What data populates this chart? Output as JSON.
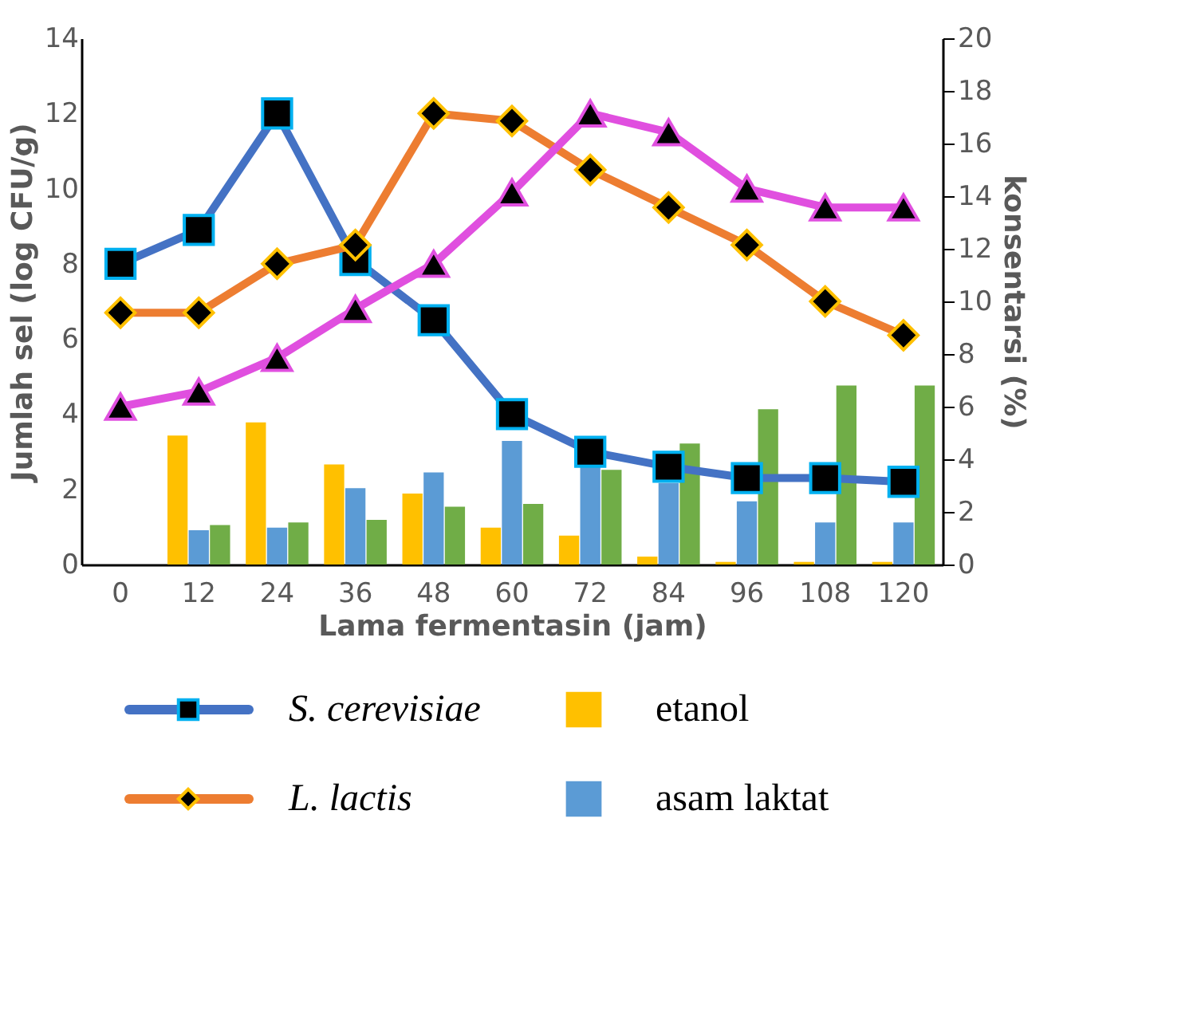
{
  "chart_data": {
    "type": "line",
    "xlabel": "Lama fermentasin (jam)",
    "ylabel": "Jumlah sel (log CFU/g)",
    "y2label": "konsentarsi (%)",
    "categories": [
      "0",
      "12",
      "24",
      "36",
      "48",
      "60",
      "72",
      "84",
      "96",
      "108",
      "120"
    ],
    "ylim": [
      0,
      14
    ],
    "yticks": [
      0,
      2,
      4,
      6,
      8,
      10,
      12,
      14
    ],
    "y2lim": [
      0,
      20
    ],
    "y2ticks": [
      0,
      2,
      4,
      6,
      8,
      10,
      12,
      14,
      16,
      18,
      20
    ],
    "grid": false,
    "legend": "bottom",
    "series": [
      {
        "type": "bar",
        "axis": "y2",
        "name": "etanol",
        "color": "#ffc000",
        "values": [
          null,
          4.9,
          5.4,
          3.8,
          2.7,
          1.4,
          1.1,
          0.3,
          0.1,
          0.1,
          0.1
        ]
      },
      {
        "type": "bar",
        "axis": "y2",
        "name": "asam laktat",
        "color": "#5b9bd5",
        "values": [
          null,
          1.3,
          1.4,
          2.9,
          3.5,
          4.7,
          3.7,
          3.1,
          2.4,
          1.6,
          1.6
        ]
      },
      {
        "type": "bar",
        "axis": "y2",
        "color": "#70ad47",
        "values": [
          null,
          1.5,
          1.6,
          1.7,
          2.2,
          2.3,
          3.6,
          4.6,
          5.9,
          6.8,
          6.8
        ]
      },
      {
        "name": "S. cerevisiae",
        "color": "#4472c4",
        "marker": "square",
        "values": [
          8.0,
          8.9,
          12.0,
          8.1,
          6.5,
          4.0,
          3.0,
          2.6,
          2.3,
          2.3,
          2.2
        ]
      },
      {
        "name": "L. lactis",
        "color": "#ed7d31",
        "marker": "diamond",
        "values": [
          6.7,
          6.7,
          8.0,
          8.5,
          12.0,
          11.8,
          10.5,
          9.5,
          8.5,
          7.0,
          6.1
        ]
      },
      {
        "color": "#e04fdf",
        "marker": "triangle",
        "values": [
          4.2,
          4.6,
          5.5,
          6.8,
          8.0,
          9.9,
          12.0,
          11.5,
          10.0,
          9.5,
          9.5
        ]
      }
    ]
  }
}
